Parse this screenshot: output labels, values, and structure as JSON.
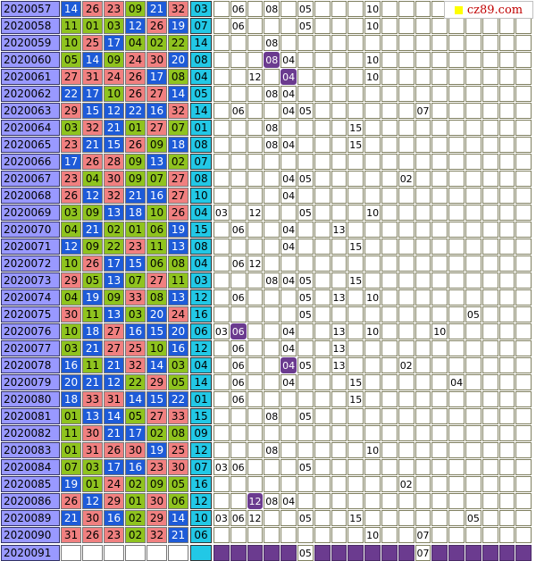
{
  "site": {
    "label": "cz89.com",
    "icon": "yellow-square-icon"
  },
  "colors": {
    "red": "#f08080",
    "blue": "#1e5bd8",
    "green": "#8fc31f",
    "special": "#22c8e6",
    "highlight": "#6b3b8f"
  },
  "rows": [
    {
      "issue": "2020057",
      "balls": [
        [
          "14",
          "b"
        ],
        [
          "26",
          "r"
        ],
        [
          "23",
          "r"
        ],
        [
          "09",
          "g"
        ],
        [
          "21",
          "b"
        ],
        [
          "32",
          "r"
        ]
      ],
      "special": "03",
      "hits": [
        [
          "08",
          ""
        ],
        [
          "05",
          ""
        ],
        [
          "10",
          ""
        ],
        [
          "06",
          ""
        ]
      ]
    },
    {
      "issue": "2020058",
      "balls": [
        [
          "11",
          "g"
        ],
        [
          "01",
          "g"
        ],
        [
          "03",
          "g"
        ],
        [
          "12",
          "b"
        ],
        [
          "26",
          "r"
        ],
        [
          "19",
          "b"
        ]
      ],
      "special": "07",
      "hits": [
        [
          "05",
          ""
        ],
        [
          "10",
          ""
        ],
        [
          "06",
          ""
        ]
      ]
    },
    {
      "issue": "2020059",
      "balls": [
        [
          "10",
          "g"
        ],
        [
          "25",
          "r"
        ],
        [
          "17",
          "b"
        ],
        [
          "04",
          "g"
        ],
        [
          "02",
          "g"
        ],
        [
          "22",
          "g"
        ]
      ],
      "special": "14",
      "hits": [
        [
          "08",
          ""
        ]
      ]
    },
    {
      "issue": "2020060",
      "balls": [
        [
          "05",
          "g"
        ],
        [
          "14",
          "b"
        ],
        [
          "09",
          "g"
        ],
        [
          "24",
          "r"
        ],
        [
          "30",
          "r"
        ],
        [
          "20",
          "b"
        ]
      ],
      "special": "08",
      "hits": [
        [
          "04",
          ""
        ],
        [
          "08",
          "hl"
        ],
        [
          "10",
          ""
        ]
      ]
    },
    {
      "issue": "2020061",
      "balls": [
        [
          "27",
          "r"
        ],
        [
          "31",
          "r"
        ],
        [
          "24",
          "r"
        ],
        [
          "26",
          "r"
        ],
        [
          "17",
          "b"
        ],
        [
          "08",
          "g"
        ]
      ],
      "special": "04",
      "hits": [
        [
          "12",
          ""
        ],
        [
          "10",
          ""
        ],
        [
          "04",
          "hl"
        ]
      ]
    },
    {
      "issue": "2020062",
      "balls": [
        [
          "22",
          "b"
        ],
        [
          "17",
          "b"
        ],
        [
          "10",
          "g"
        ],
        [
          "26",
          "r"
        ],
        [
          "27",
          "r"
        ],
        [
          "14",
          "b"
        ]
      ],
      "special": "05",
      "hits": [
        [
          "08",
          ""
        ],
        [
          "04",
          ""
        ]
      ]
    },
    {
      "issue": "2020063",
      "balls": [
        [
          "29",
          "r"
        ],
        [
          "15",
          "b"
        ],
        [
          "12",
          "b"
        ],
        [
          "22",
          "b"
        ],
        [
          "16",
          "b"
        ],
        [
          "32",
          "r"
        ]
      ],
      "special": "14",
      "hits": [
        [
          "06",
          ""
        ],
        [
          "07",
          ""
        ],
        [
          "05",
          ""
        ],
        [
          "04",
          ""
        ]
      ]
    },
    {
      "issue": "2020064",
      "balls": [
        [
          "03",
          "g"
        ],
        [
          "32",
          "r"
        ],
        [
          "21",
          "b"
        ],
        [
          "01",
          "g"
        ],
        [
          "27",
          "r"
        ],
        [
          "07",
          "g"
        ]
      ],
      "special": "01",
      "hits": [
        [
          "08",
          ""
        ],
        [
          "15",
          ""
        ]
      ]
    },
    {
      "issue": "2020065",
      "balls": [
        [
          "23",
          "r"
        ],
        [
          "21",
          "b"
        ],
        [
          "15",
          "b"
        ],
        [
          "26",
          "r"
        ],
        [
          "09",
          "g"
        ],
        [
          "18",
          "b"
        ]
      ],
      "special": "08",
      "hits": [
        [
          "04",
          ""
        ],
        [
          "15",
          ""
        ],
        [
          "08",
          ""
        ]
      ]
    },
    {
      "issue": "2020066",
      "balls": [
        [
          "17",
          "b"
        ],
        [
          "26",
          "r"
        ],
        [
          "28",
          "r"
        ],
        [
          "09",
          "g"
        ],
        [
          "13",
          "b"
        ],
        [
          "02",
          "g"
        ]
      ],
      "special": "07",
      "hits": []
    },
    {
      "issue": "2020067",
      "balls": [
        [
          "23",
          "r"
        ],
        [
          "04",
          "g"
        ],
        [
          "30",
          "r"
        ],
        [
          "09",
          "g"
        ],
        [
          "07",
          "g"
        ],
        [
          "27",
          "r"
        ]
      ],
      "special": "08",
      "hits": [
        [
          "05",
          ""
        ],
        [
          "02",
          ""
        ],
        [
          "04",
          ""
        ]
      ]
    },
    {
      "issue": "2020068",
      "balls": [
        [
          "26",
          "r"
        ],
        [
          "12",
          "b"
        ],
        [
          "32",
          "r"
        ],
        [
          "21",
          "b"
        ],
        [
          "16",
          "b"
        ],
        [
          "27",
          "r"
        ]
      ],
      "special": "10",
      "hits": [
        [
          "04",
          ""
        ]
      ]
    },
    {
      "issue": "2020069",
      "balls": [
        [
          "03",
          "g"
        ],
        [
          "09",
          "g"
        ],
        [
          "13",
          "b"
        ],
        [
          "18",
          "b"
        ],
        [
          "10",
          "g"
        ],
        [
          "26",
          "r"
        ]
      ],
      "special": "04",
      "hits": [
        [
          "03",
          ""
        ],
        [
          "12",
          ""
        ],
        [
          "05",
          ""
        ],
        [
          "10",
          ""
        ]
      ]
    },
    {
      "issue": "2020070",
      "balls": [
        [
          "04",
          "g"
        ],
        [
          "21",
          "b"
        ],
        [
          "02",
          "g"
        ],
        [
          "01",
          "g"
        ],
        [
          "06",
          "g"
        ],
        [
          "19",
          "b"
        ]
      ],
      "special": "15",
      "hits": [
        [
          "06",
          ""
        ],
        [
          "13",
          ""
        ],
        [
          "04",
          ""
        ]
      ]
    },
    {
      "issue": "2020071",
      "balls": [
        [
          "12",
          "b"
        ],
        [
          "09",
          "g"
        ],
        [
          "22",
          "g"
        ],
        [
          "23",
          "r"
        ],
        [
          "11",
          "g"
        ],
        [
          "13",
          "b"
        ]
      ],
      "special": "08",
      "hits": [
        [
          "15",
          ""
        ],
        [
          "04",
          ""
        ]
      ]
    },
    {
      "issue": "2020072",
      "balls": [
        [
          "10",
          "g"
        ],
        [
          "26",
          "r"
        ],
        [
          "17",
          "b"
        ],
        [
          "15",
          "b"
        ],
        [
          "06",
          "g"
        ],
        [
          "08",
          "g"
        ]
      ],
      "special": "04",
      "hits": [
        [
          "12",
          ""
        ],
        [
          "06",
          ""
        ]
      ]
    },
    {
      "issue": "2020073",
      "balls": [
        [
          "29",
          "r"
        ],
        [
          "05",
          "g"
        ],
        [
          "13",
          "b"
        ],
        [
          "07",
          "g"
        ],
        [
          "27",
          "r"
        ],
        [
          "11",
          "g"
        ]
      ],
      "special": "03",
      "hits": [
        [
          "05",
          ""
        ],
        [
          "15",
          ""
        ],
        [
          "08",
          ""
        ],
        [
          "04",
          ""
        ]
      ]
    },
    {
      "issue": "2020074",
      "balls": [
        [
          "04",
          "g"
        ],
        [
          "19",
          "b"
        ],
        [
          "09",
          "g"
        ],
        [
          "33",
          "r"
        ],
        [
          "08",
          "g"
        ],
        [
          "13",
          "b"
        ]
      ],
      "special": "12",
      "hits": [
        [
          "05",
          ""
        ],
        [
          "06",
          ""
        ],
        [
          "13",
          ""
        ],
        [
          "10",
          ""
        ]
      ]
    },
    {
      "issue": "2020075",
      "balls": [
        [
          "30",
          "r"
        ],
        [
          "11",
          "g"
        ],
        [
          "13",
          "b"
        ],
        [
          "03",
          "g"
        ],
        [
          "20",
          "b"
        ],
        [
          "24",
          "r"
        ]
      ],
      "special": "16",
      "hits": [
        [
          "05",
          ""
        ],
        [
          "05",
          ""
        ]
      ]
    },
    {
      "issue": "2020076",
      "balls": [
        [
          "10",
          "g"
        ],
        [
          "18",
          "b"
        ],
        [
          "27",
          "r"
        ],
        [
          "16",
          "b"
        ],
        [
          "15",
          "b"
        ],
        [
          "20",
          "b"
        ]
      ],
      "special": "06",
      "hits": [
        [
          "03",
          ""
        ],
        [
          "04",
          ""
        ],
        [
          "06",
          "hl"
        ],
        [
          "13",
          ""
        ],
        [
          "10",
          ""
        ],
        [
          "10",
          ""
        ]
      ]
    },
    {
      "issue": "2020077",
      "balls": [
        [
          "03",
          "g"
        ],
        [
          "21",
          "b"
        ],
        [
          "27",
          "r"
        ],
        [
          "25",
          "r"
        ],
        [
          "10",
          "g"
        ],
        [
          "16",
          "b"
        ]
      ],
      "special": "12",
      "hits": [
        [
          "04",
          ""
        ],
        [
          "06",
          ""
        ],
        [
          "13",
          ""
        ]
      ]
    },
    {
      "issue": "2020078",
      "balls": [
        [
          "16",
          "b"
        ],
        [
          "11",
          "g"
        ],
        [
          "21",
          "b"
        ],
        [
          "32",
          "r"
        ],
        [
          "14",
          "b"
        ],
        [
          "03",
          "g"
        ]
      ],
      "special": "04",
      "hits": [
        [
          "06",
          ""
        ],
        [
          "13",
          ""
        ],
        [
          "02",
          ""
        ],
        [
          "05",
          ""
        ],
        [
          "04",
          "hl"
        ]
      ]
    },
    {
      "issue": "2020079",
      "balls": [
        [
          "20",
          "b"
        ],
        [
          "21",
          "b"
        ],
        [
          "12",
          "b"
        ],
        [
          "22",
          "g"
        ],
        [
          "29",
          "r"
        ],
        [
          "05",
          "g"
        ]
      ],
      "special": "14",
      "hits": [
        [
          "06",
          ""
        ],
        [
          "15",
          ""
        ],
        [
          "04",
          ""
        ],
        [
          "04",
          ""
        ]
      ]
    },
    {
      "issue": "2020080",
      "balls": [
        [
          "18",
          "b"
        ],
        [
          "33",
          "r"
        ],
        [
          "31",
          "r"
        ],
        [
          "14",
          "b"
        ],
        [
          "15",
          "b"
        ],
        [
          "22",
          "b"
        ]
      ],
      "special": "01",
      "hits": [
        [
          "15",
          ""
        ],
        [
          "06",
          ""
        ]
      ]
    },
    {
      "issue": "2020081",
      "balls": [
        [
          "01",
          "g"
        ],
        [
          "13",
          "b"
        ],
        [
          "14",
          "b"
        ],
        [
          "05",
          "g"
        ],
        [
          "27",
          "r"
        ],
        [
          "33",
          "r"
        ]
      ],
      "special": "15",
      "hits": [
        [
          "05",
          ""
        ],
        [
          "08",
          ""
        ]
      ]
    },
    {
      "issue": "2020082",
      "balls": [
        [
          "11",
          "g"
        ],
        [
          "30",
          "r"
        ],
        [
          "21",
          "b"
        ],
        [
          "17",
          "b"
        ],
        [
          "02",
          "g"
        ],
        [
          "08",
          "g"
        ]
      ],
      "special": "09",
      "hits": []
    },
    {
      "issue": "2020083",
      "balls": [
        [
          "01",
          "g"
        ],
        [
          "31",
          "r"
        ],
        [
          "26",
          "r"
        ],
        [
          "30",
          "r"
        ],
        [
          "19",
          "b"
        ],
        [
          "25",
          "r"
        ]
      ],
      "special": "12",
      "hits": [
        [
          "10",
          ""
        ],
        [
          "08",
          ""
        ]
      ]
    },
    {
      "issue": "2020084",
      "balls": [
        [
          "07",
          "g"
        ],
        [
          "03",
          "g"
        ],
        [
          "17",
          "b"
        ],
        [
          "16",
          "b"
        ],
        [
          "23",
          "r"
        ],
        [
          "30",
          "r"
        ]
      ],
      "special": "07",
      "hits": [
        [
          "03",
          ""
        ],
        [
          "05",
          ""
        ],
        [
          "06",
          ""
        ]
      ]
    },
    {
      "issue": "2020085",
      "balls": [
        [
          "19",
          "b"
        ],
        [
          "01",
          "g"
        ],
        [
          "24",
          "r"
        ],
        [
          "02",
          "g"
        ],
        [
          "09",
          "g"
        ],
        [
          "05",
          "g"
        ]
      ],
      "special": "16",
      "hits": [
        [
          "02",
          ""
        ]
      ]
    },
    {
      "issue": "2020086",
      "balls": [
        [
          "26",
          "r"
        ],
        [
          "12",
          "b"
        ],
        [
          "29",
          "r"
        ],
        [
          "01",
          "g"
        ],
        [
          "30",
          "r"
        ],
        [
          "06",
          "g"
        ]
      ],
      "special": "12",
      "hits": [
        [
          "12",
          "hl"
        ],
        [
          "08",
          ""
        ],
        [
          "04",
          ""
        ]
      ]
    },
    {
      "issue": "2020089",
      "balls": [
        [
          "21",
          "b"
        ],
        [
          "30",
          "r"
        ],
        [
          "16",
          "b"
        ],
        [
          "02",
          "g"
        ],
        [
          "29",
          "r"
        ],
        [
          "14",
          "b"
        ]
      ],
      "special": "10",
      "hits": [
        [
          "03",
          ""
        ],
        [
          "12",
          ""
        ],
        [
          "05",
          ""
        ],
        [
          "15",
          ""
        ],
        [
          "05",
          ""
        ],
        [
          "06",
          ""
        ]
      ]
    },
    {
      "issue": "2020090",
      "balls": [
        [
          "31",
          "r"
        ],
        [
          "26",
          "r"
        ],
        [
          "23",
          "r"
        ],
        [
          "02",
          "g"
        ],
        [
          "32",
          "r"
        ],
        [
          "21",
          "b"
        ]
      ],
      "special": "06",
      "hits": [
        [
          "07",
          ""
        ],
        [
          "10",
          ""
        ]
      ]
    },
    {
      "issue": "2020091",
      "balls": [
        [
          "",
          "e"
        ],
        [
          "",
          "e"
        ],
        [
          "",
          "e"
        ],
        [
          "",
          "e"
        ],
        [
          "",
          "e"
        ],
        [
          "",
          "e"
        ]
      ],
      "special": "",
      "hits": [
        [
          "05",
          ""
        ],
        [
          "07",
          ""
        ]
      ]
    }
  ]
}
